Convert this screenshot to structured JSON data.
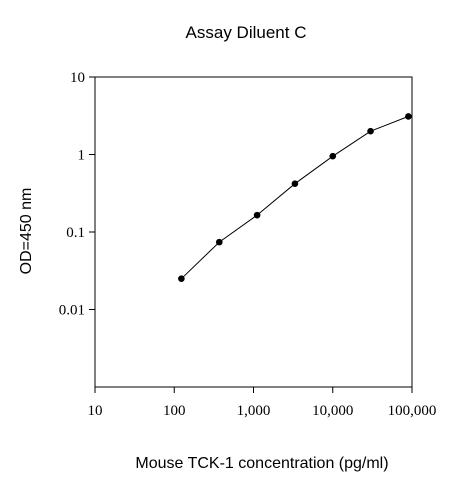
{
  "chart_data": {
    "type": "line",
    "title": "Assay Diluent C",
    "xlabel": "Mouse TCK-1 concentration (pg/ml)",
    "ylabel": "OD=450 nm",
    "x_scale": "log",
    "y_scale": "log",
    "xlim": [
      10,
      100000
    ],
    "ylim": [
      0.001,
      10
    ],
    "x_ticks": [
      {
        "value": 10,
        "label": "10"
      },
      {
        "value": 100,
        "label": "100"
      },
      {
        "value": 1000,
        "label": "1,000"
      },
      {
        "value": 10000,
        "label": "10,000"
      },
      {
        "value": 100000,
        "label": "100,000"
      }
    ],
    "y_ticks": [
      {
        "value": 0.01,
        "label": "0.01"
      },
      {
        "value": 0.1,
        "label": "0.1"
      },
      {
        "value": 1,
        "label": "1"
      },
      {
        "value": 10,
        "label": "10"
      }
    ],
    "grid": false,
    "legend": "none",
    "series": [
      {
        "x": [
          123,
          370,
          1111,
          3333,
          10000,
          30000,
          90000
        ],
        "y": [
          0.025,
          0.074,
          0.165,
          0.42,
          0.95,
          2.0,
          3.1
        ],
        "marker": "circle",
        "color": "#000000"
      }
    ]
  }
}
